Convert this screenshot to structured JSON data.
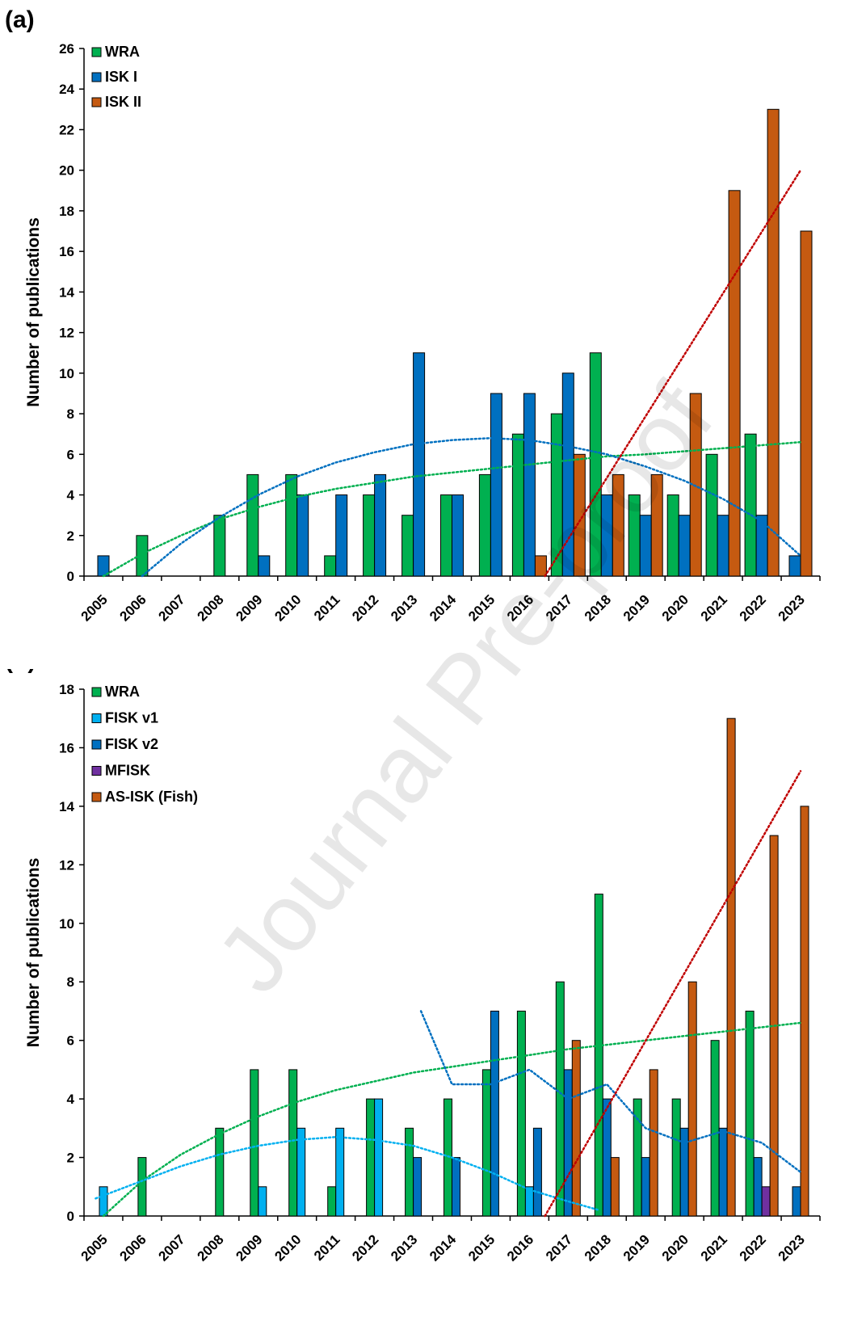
{
  "watermark": "Journal Pre-proof",
  "chart_data": [
    {
      "panel": "(a)",
      "type": "bar",
      "ylabel": "Number of publications",
      "ylim": [
        0,
        26
      ],
      "ytick_step": 2,
      "grid": false,
      "legend_position": "top-left",
      "categories": [
        "2005",
        "2006",
        "2007",
        "2008",
        "2009",
        "2010",
        "2011",
        "2012",
        "2013",
        "2014",
        "2015",
        "2016",
        "2017",
        "2018",
        "2019",
        "2020",
        "2021",
        "2022",
        "2023"
      ],
      "series": [
        {
          "name": "WRA",
          "color": "#00B050",
          "values": [
            0,
            2,
            0,
            3,
            5,
            5,
            1,
            4,
            3,
            4,
            5,
            7,
            8,
            11,
            4,
            4,
            6,
            7,
            0
          ]
        },
        {
          "name": "ISK I",
          "color": "#0070C0",
          "values": [
            1,
            0,
            0,
            0,
            1,
            4,
            4,
            5,
            11,
            4,
            9,
            9,
            10,
            4,
            3,
            3,
            3,
            3,
            1
          ]
        },
        {
          "name": "ISK II",
          "color": "#C55A11",
          "values": [
            0,
            0,
            0,
            0,
            0,
            0,
            0,
            0,
            0,
            0,
            0,
            1,
            6,
            5,
            5,
            9,
            19,
            23,
            17
          ]
        }
      ],
      "trendlines": [
        {
          "series": "WRA",
          "kind": "logarithmic",
          "color": "#00B050",
          "points": [
            [
              0,
              0
            ],
            [
              1,
              1.1
            ],
            [
              2,
              2.0
            ],
            [
              3,
              2.8
            ],
            [
              4,
              3.4
            ],
            [
              5,
              3.9
            ],
            [
              6,
              4.3
            ],
            [
              7,
              4.6
            ],
            [
              8,
              4.9
            ],
            [
              9,
              5.1
            ],
            [
              10,
              5.3
            ],
            [
              11,
              5.5
            ],
            [
              12,
              5.7
            ],
            [
              13,
              5.9
            ],
            [
              14,
              6.0
            ],
            [
              15,
              6.15
            ],
            [
              16,
              6.3
            ],
            [
              17,
              6.45
            ],
            [
              18,
              6.6
            ]
          ]
        },
        {
          "series": "ISK I",
          "kind": "polynomial",
          "color": "#0070C0",
          "points": [
            [
              1,
              0
            ],
            [
              2,
              1.6
            ],
            [
              3,
              2.9
            ],
            [
              4,
              4.0
            ],
            [
              5,
              4.9
            ],
            [
              6,
              5.6
            ],
            [
              7,
              6.1
            ],
            [
              8,
              6.5
            ],
            [
              9,
              6.7
            ],
            [
              10,
              6.8
            ],
            [
              11,
              6.7
            ],
            [
              12,
              6.4
            ],
            [
              13,
              6.0
            ],
            [
              14,
              5.4
            ],
            [
              15,
              4.7
            ],
            [
              16,
              3.8
            ],
            [
              17,
              2.7
            ],
            [
              18,
              1.0
            ]
          ]
        },
        {
          "series": "ISK II",
          "kind": "linear",
          "color": "#C00000",
          "points": [
            [
              11.4,
              0
            ],
            [
              18,
              20
            ]
          ]
        }
      ]
    },
    {
      "panel": "(b)",
      "type": "bar",
      "ylabel": "Number of publications",
      "ylim": [
        0,
        18
      ],
      "ytick_step": 2,
      "grid": false,
      "legend_position": "top-left",
      "categories": [
        "2005",
        "2006",
        "2007",
        "2008",
        "2009",
        "2010",
        "2011",
        "2012",
        "2013",
        "2014",
        "2015",
        "2016",
        "2017",
        "2018",
        "2019",
        "2020",
        "2021",
        "2022",
        "2023"
      ],
      "series": [
        {
          "name": "WRA",
          "color": "#00B050",
          "values": [
            0,
            2,
            0,
            3,
            5,
            5,
            1,
            4,
            3,
            4,
            5,
            7,
            8,
            11,
            4,
            4,
            6,
            7,
            0
          ]
        },
        {
          "name": "FISK v1",
          "color": "#00B0F0",
          "values": [
            1,
            0,
            0,
            0,
            1,
            3,
            3,
            4,
            0,
            0,
            0,
            1,
            0,
            0,
            0,
            0,
            0,
            0,
            0
          ]
        },
        {
          "name": "FISK v2",
          "color": "#0070C0",
          "values": [
            0,
            0,
            0,
            0,
            0,
            0,
            0,
            0,
            2,
            2,
            7,
            3,
            5,
            4,
            2,
            3,
            3,
            2,
            1
          ]
        },
        {
          "name": "MFISK",
          "color": "#7030A0",
          "values": [
            0,
            0,
            0,
            0,
            0,
            0,
            0,
            0,
            0,
            0,
            0,
            0,
            0,
            0,
            0,
            0,
            0,
            1,
            0
          ]
        },
        {
          "name": "AS-ISK (Fish)",
          "color": "#C55A11",
          "values": [
            0,
            0,
            0,
            0,
            0,
            0,
            0,
            0,
            0,
            0,
            0,
            0,
            6,
            2,
            5,
            8,
            17,
            13,
            14
          ]
        }
      ],
      "trendlines": [
        {
          "series": "WRA",
          "kind": "logarithmic",
          "color": "#00B050",
          "points": [
            [
              0,
              0
            ],
            [
              1,
              1.2
            ],
            [
              2,
              2.1
            ],
            [
              3,
              2.8
            ],
            [
              4,
              3.4
            ],
            [
              5,
              3.9
            ],
            [
              6,
              4.3
            ],
            [
              7,
              4.6
            ],
            [
              8,
              4.9
            ],
            [
              9,
              5.1
            ],
            [
              10,
              5.3
            ],
            [
              11,
              5.5
            ],
            [
              12,
              5.7
            ],
            [
              13,
              5.85
            ],
            [
              14,
              6.0
            ],
            [
              15,
              6.15
            ],
            [
              16,
              6.3
            ],
            [
              17,
              6.45
            ],
            [
              18,
              6.6
            ]
          ]
        },
        {
          "series": "FISK v1",
          "kind": "polynomial",
          "color": "#00B0F0",
          "points": [
            [
              -0.2,
              0.6
            ],
            [
              1,
              1.2
            ],
            [
              2,
              1.7
            ],
            [
              3,
              2.1
            ],
            [
              4,
              2.4
            ],
            [
              5,
              2.6
            ],
            [
              6,
              2.7
            ],
            [
              7,
              2.6
            ],
            [
              8,
              2.4
            ],
            [
              9,
              2.0
            ],
            [
              10,
              1.5
            ],
            [
              11,
              0.9
            ],
            [
              12,
              0.5
            ],
            [
              12.8,
              0.2
            ]
          ]
        },
        {
          "series": "FISK v2",
          "kind": "moving-average",
          "color": "#0070C0",
          "points": [
            [
              8.2,
              7
            ],
            [
              9,
              4.5
            ],
            [
              10,
              4.5
            ],
            [
              11,
              5.0
            ],
            [
              12,
              4.0
            ],
            [
              13,
              4.5
            ],
            [
              14,
              3.0
            ],
            [
              15,
              2.5
            ],
            [
              16,
              2.9
            ],
            [
              17,
              2.5
            ],
            [
              18,
              1.5
            ]
          ]
        },
        {
          "series": "AS-ISK (Fish)",
          "kind": "linear",
          "color": "#C00000",
          "points": [
            [
              11.4,
              0
            ],
            [
              18,
              15.2
            ]
          ]
        }
      ]
    }
  ]
}
